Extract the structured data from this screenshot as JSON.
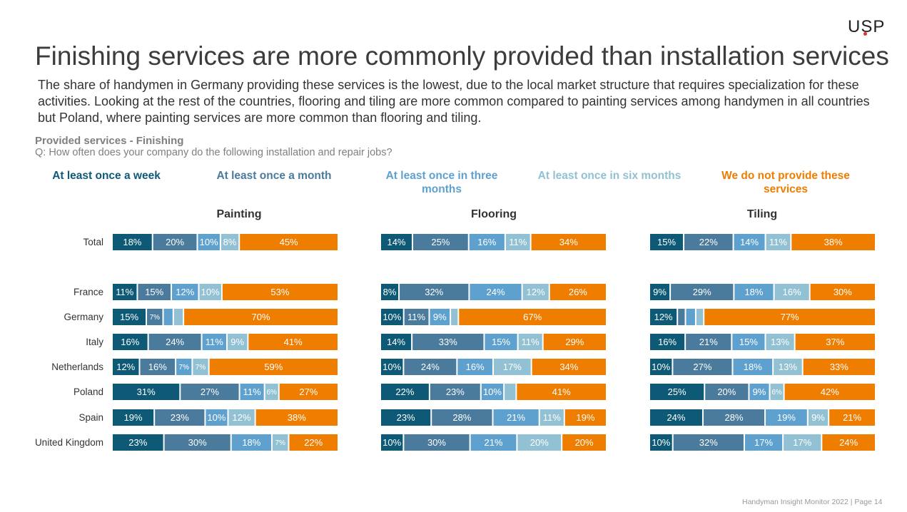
{
  "logo": "USP",
  "title": "Finishing services are more commonly provided than installation services",
  "subtitle": "The share of handymen in Germany providing these services is the lowest, due to the local market structure that requires specialization for these activities. Looking at the rest of the countries, flooring and tiling are more common compared to painting services among handymen in all countries but Poland, where painting services are more common than flooring and tiling.",
  "section": "Provided services - Finishing",
  "question": "Q: How often does your company do the following installation and repair jobs?",
  "footer": "Handyman Insight Monitor 2022 | Page 14",
  "colors": {
    "week": "#0e5a76",
    "month": "#4a7a9c",
    "three_months": "#5ea1cf",
    "six_months": "#92c1d3",
    "none": "#ef7d00"
  },
  "chart_data": {
    "type": "bar",
    "orientation": "horizontal-stacked-100",
    "categories": [
      "Total",
      "France",
      "Germany",
      "Italy",
      "Netherlands",
      "Poland",
      "Spain",
      "United Kingdom"
    ],
    "series_names": [
      "At least once a week",
      "At least once a month",
      "At least once in three months",
      "At least once in six months",
      "We do not provide these services"
    ],
    "panels": [
      {
        "title": "Painting",
        "values": [
          [
            18,
            20,
            10,
            8,
            45
          ],
          [
            11,
            15,
            12,
            10,
            53
          ],
          [
            15,
            7,
            4,
            4,
            70
          ],
          [
            16,
            24,
            11,
            9,
            41
          ],
          [
            12,
            16,
            7,
            7,
            59
          ],
          [
            31,
            27,
            11,
            6,
            27
          ],
          [
            19,
            23,
            10,
            12,
            38
          ],
          [
            23,
            30,
            18,
            7,
            22
          ]
        ],
        "labels": [
          [
            "18%",
            "20%",
            "10%",
            "8%",
            "45%"
          ],
          [
            "11%",
            "15%",
            "12%",
            "10%",
            "53%"
          ],
          [
            "15%",
            "7%",
            "",
            "",
            "70%"
          ],
          [
            "16%",
            "24%",
            "11%",
            "9%",
            "41%"
          ],
          [
            "12%",
            "16%",
            "7%",
            "7%",
            "59%"
          ],
          [
            "31%",
            "27%",
            "11%",
            "6%",
            "27%"
          ],
          [
            "19%",
            "23%",
            "10%",
            "12%",
            "38%"
          ],
          [
            "23%",
            "30%",
            "18%",
            "7%",
            "22%"
          ]
        ]
      },
      {
        "title": "Flooring",
        "values": [
          [
            14,
            25,
            16,
            11,
            34
          ],
          [
            8,
            32,
            24,
            12,
            26
          ],
          [
            10,
            11,
            9,
            3,
            67
          ],
          [
            14,
            33,
            15,
            11,
            29
          ],
          [
            10,
            24,
            16,
            17,
            34
          ],
          [
            22,
            23,
            10,
            5,
            41
          ],
          [
            23,
            28,
            21,
            11,
            19
          ],
          [
            10,
            30,
            21,
            20,
            20
          ]
        ],
        "labels": [
          [
            "14%",
            "25%",
            "16%",
            "11%",
            "34%"
          ],
          [
            "8%",
            "32%",
            "24%",
            "12%",
            "26%"
          ],
          [
            "10%",
            "11%",
            "9%",
            "",
            "67%"
          ],
          [
            "14%",
            "33%",
            "15%",
            "11%",
            "29%"
          ],
          [
            "10%",
            "24%",
            "16%",
            "17%",
            "34%"
          ],
          [
            "22%",
            "23%",
            "10%",
            "",
            "41%"
          ],
          [
            "23%",
            "28%",
            "21%",
            "11%",
            "19%"
          ],
          [
            "10%",
            "30%",
            "21%",
            "20%",
            "20%"
          ]
        ]
      },
      {
        "title": "Tiling",
        "values": [
          [
            15,
            22,
            14,
            11,
            38
          ],
          [
            9,
            29,
            18,
            16,
            30
          ],
          [
            12,
            3,
            4,
            3,
            77
          ],
          [
            16,
            21,
            15,
            13,
            37
          ],
          [
            10,
            27,
            18,
            13,
            33
          ],
          [
            25,
            20,
            9,
            6,
            42
          ],
          [
            24,
            28,
            19,
            9,
            21
          ],
          [
            10,
            32,
            17,
            17,
            24
          ]
        ],
        "labels": [
          [
            "15%",
            "22%",
            "14%",
            "11%",
            "38%"
          ],
          [
            "9%",
            "29%",
            "18%",
            "16%",
            "30%"
          ],
          [
            "12%",
            "",
            "",
            "",
            "77%"
          ],
          [
            "16%",
            "21%",
            "15%",
            "13%",
            "37%"
          ],
          [
            "10%",
            "27%",
            "18%",
            "13%",
            "33%"
          ],
          [
            "25%",
            "20%",
            "9%",
            "6%",
            "42%"
          ],
          [
            "24%",
            "28%",
            "19%",
            "9%",
            "21%"
          ],
          [
            "10%",
            "32%",
            "17%",
            "17%",
            "24%"
          ]
        ]
      }
    ]
  }
}
